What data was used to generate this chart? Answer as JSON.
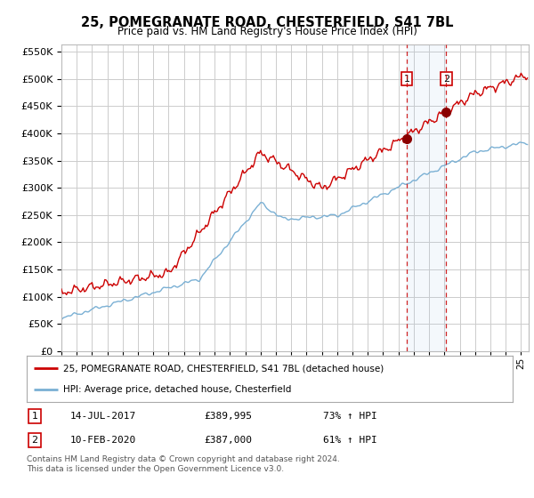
{
  "title": "25, POMEGRANATE ROAD, CHESTERFIELD, S41 7BL",
  "subtitle": "Price paid vs. HM Land Registry's House Price Index (HPI)",
  "ylim": [
    0,
    562500
  ],
  "yticks": [
    0,
    50000,
    100000,
    150000,
    200000,
    250000,
    300000,
    350000,
    400000,
    450000,
    500000,
    550000
  ],
  "xlim_start": 1995.0,
  "xlim_end": 2025.5,
  "legend_line1": "25, POMEGRANATE ROAD, CHESTERFIELD, S41 7BL (detached house)",
  "legend_line2": "HPI: Average price, detached house, Chesterfield",
  "transaction1_date": 2017.536,
  "transaction1_price": 389995,
  "transaction2_date": 2020.11,
  "transaction2_price": 387000,
  "footer": "Contains HM Land Registry data © Crown copyright and database right 2024.\nThis data is licensed under the Open Government Licence v3.0.",
  "red_color": "#cc0000",
  "blue_color": "#7ab0d4",
  "marker_color": "#8b0000",
  "bg_color": "#ffffff",
  "grid_color": "#cccccc"
}
